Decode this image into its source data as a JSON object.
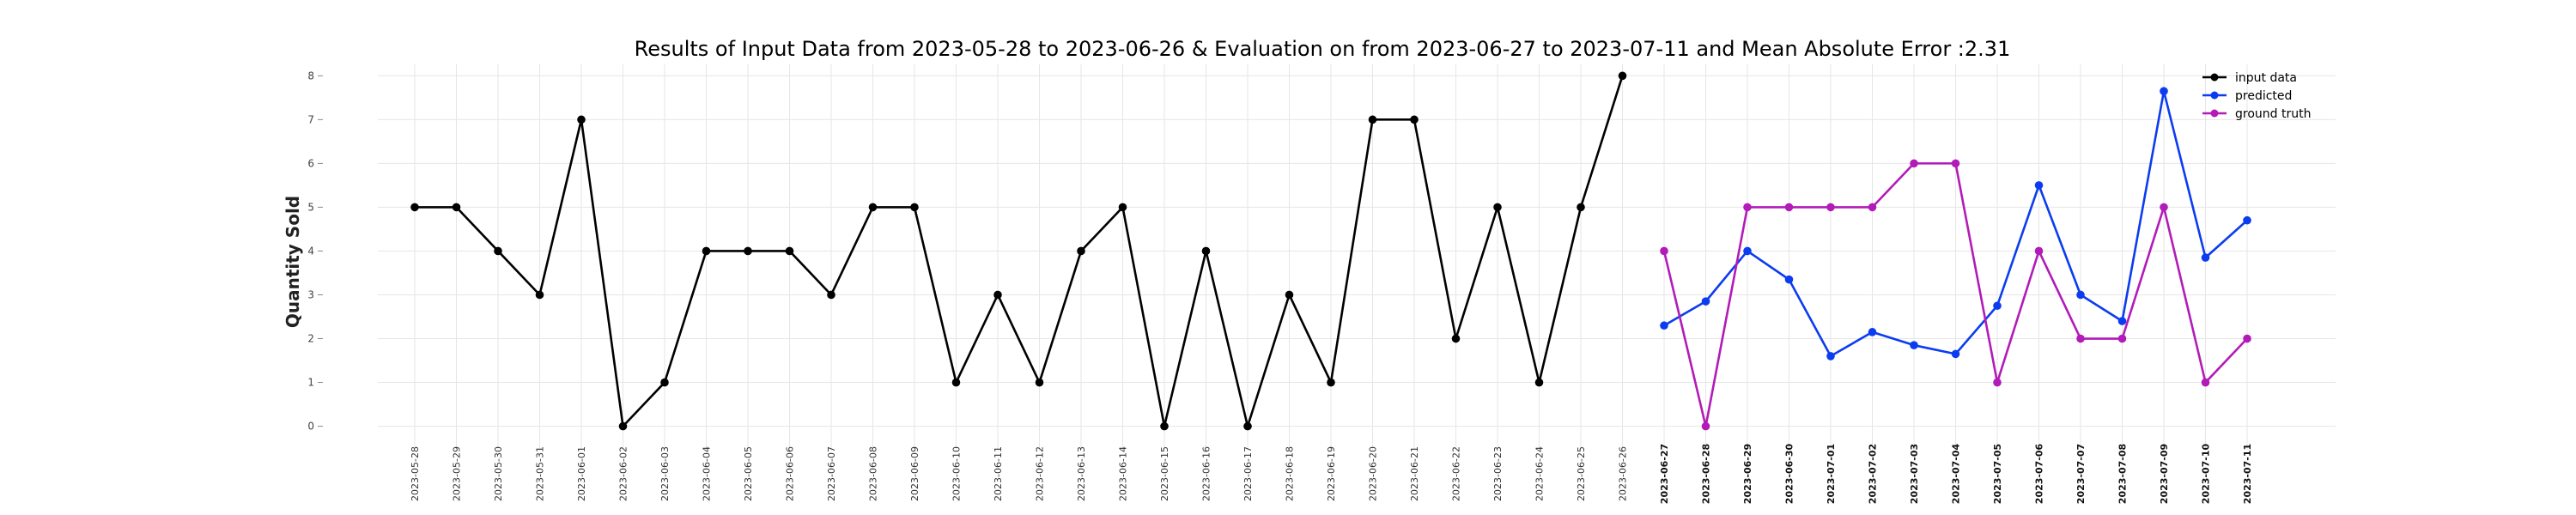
{
  "chart_data": {
    "type": "line",
    "title": "Results of Input Data from 2023-05-28 to 2023-06-26 & Evaluation on from 2023-06-27 to 2023-07-11 and Mean Absolute Error  :2.31",
    "xlabel": "",
    "ylabel": "Quantity Sold",
    "ylim": [
      -0.4,
      8.3
    ],
    "yticks": [
      0,
      1,
      2,
      3,
      4,
      5,
      6,
      7,
      8
    ],
    "grid": true,
    "legend": "top-right",
    "x_labels": [
      "2023-05-28",
      "2023-05-29",
      "2023-05-30",
      "2023-05-31",
      "2023-06-01",
      "2023-06-02",
      "2023-06-03",
      "2023-06-04",
      "2023-06-05",
      "2023-06-06",
      "2023-06-07",
      "2023-06-08",
      "2023-06-09",
      "2023-06-10",
      "2023-06-11",
      "2023-06-12",
      "2023-06-13",
      "2023-06-14",
      "2023-06-15",
      "2023-06-16",
      "2023-06-17",
      "2023-06-18",
      "2023-06-19",
      "2023-06-20",
      "2023-06-21",
      "2023-06-22",
      "2023-06-23",
      "2023-06-24",
      "2023-06-25",
      "2023-06-26",
      "2023-06-27",
      "2023-06-28",
      "2023-06-29",
      "2023-06-30",
      "2023-07-01",
      "2023-07-02",
      "2023-07-03",
      "2023-07-04",
      "2023-07-05",
      "2023-07-06",
      "2023-07-07",
      "2023-07-08",
      "2023-07-09",
      "2023-07-10",
      "2023-07-11"
    ],
    "series": [
      {
        "name": "input data",
        "color": "#000000",
        "x": [
          "2023-05-28",
          "2023-05-29",
          "2023-05-30",
          "2023-05-31",
          "2023-06-01",
          "2023-06-02",
          "2023-06-03",
          "2023-06-04",
          "2023-06-05",
          "2023-06-06",
          "2023-06-07",
          "2023-06-08",
          "2023-06-09",
          "2023-06-10",
          "2023-06-11",
          "2023-06-12",
          "2023-06-13",
          "2023-06-14",
          "2023-06-15",
          "2023-06-16",
          "2023-06-17",
          "2023-06-18",
          "2023-06-19",
          "2023-06-20",
          "2023-06-21",
          "2023-06-22",
          "2023-06-23",
          "2023-06-24",
          "2023-06-25",
          "2023-06-26"
        ],
        "values": [
          5,
          5,
          4,
          3,
          7,
          0,
          1,
          4,
          4,
          4,
          3,
          5,
          5,
          1,
          3,
          1,
          4,
          5,
          0,
          4,
          0,
          3,
          1,
          7,
          7,
          2,
          5,
          1,
          5,
          8
        ]
      },
      {
        "name": "predicted",
        "color": "#0b3cf0",
        "x": [
          "2023-06-27",
          "2023-06-28",
          "2023-06-29",
          "2023-06-30",
          "2023-07-01",
          "2023-07-02",
          "2023-07-03",
          "2023-07-04",
          "2023-07-05",
          "2023-07-06",
          "2023-07-07",
          "2023-07-08",
          "2023-07-09",
          "2023-07-10",
          "2023-07-11"
        ],
        "values": [
          2.3,
          2.85,
          4.0,
          3.35,
          1.6,
          2.15,
          1.85,
          1.65,
          2.75,
          5.5,
          3.0,
          2.4,
          7.65,
          3.85,
          4.7
        ]
      },
      {
        "name": "ground truth",
        "color": "#b21bb8",
        "x": [
          "2023-06-27",
          "2023-06-28",
          "2023-06-29",
          "2023-06-30",
          "2023-07-01",
          "2023-07-02",
          "2023-07-03",
          "2023-07-04",
          "2023-07-05",
          "2023-07-06",
          "2023-07-07",
          "2023-07-08",
          "2023-07-09",
          "2023-07-10",
          "2023-07-11"
        ],
        "values": [
          4,
          0,
          5,
          5,
          5,
          5,
          6,
          6,
          1,
          4,
          2,
          2,
          5,
          1,
          2
        ]
      }
    ]
  }
}
